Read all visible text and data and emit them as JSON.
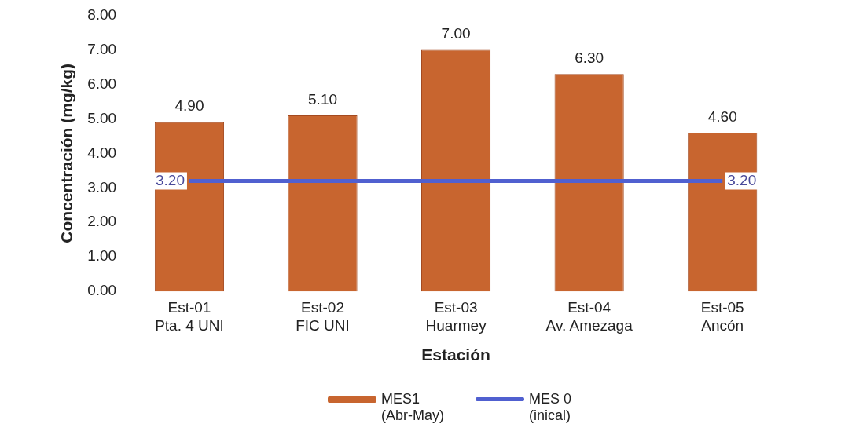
{
  "chart_data": {
    "type": "bar",
    "xlabel": "Estación",
    "ylabel": "Concentración (mg/kg)",
    "categories": [
      "Est-01\nPta. 4 UNI",
      "Est-02\nFIC UNI",
      "Est-03\nHuarmey",
      "Est-04\nAv. Amezaga",
      "Est-05\nAncón"
    ],
    "series": [
      {
        "name": "MES1\n(Abr-May)",
        "color": "#c8652f",
        "values": [
          4.9,
          5.1,
          7.0,
          6.3,
          4.6
        ],
        "value_labels": [
          "4.90",
          "5.10",
          "7.00",
          "6.30",
          "4.60"
        ]
      },
      {
        "name": "MES 0\n(inical)",
        "type": "line",
        "color": "#5060d0",
        "values": [
          3.2,
          3.2,
          3.2,
          3.2,
          3.2
        ],
        "value_labels": [
          "3.20",
          null,
          null,
          null,
          "3.20"
        ]
      }
    ],
    "ylim": [
      0,
      8
    ],
    "yticks": [
      {
        "value": 0,
        "label": "0.00"
      },
      {
        "value": 1,
        "label": "1.00"
      },
      {
        "value": 2,
        "label": "2.00"
      },
      {
        "value": 3,
        "label": "3.00"
      },
      {
        "value": 4,
        "label": "4.00"
      },
      {
        "value": 5,
        "label": "5.00"
      },
      {
        "value": 6,
        "label": "6.00"
      },
      {
        "value": 7,
        "label": "7.00"
      },
      {
        "value": 8,
        "label": "8.00"
      }
    ],
    "grid": false,
    "legend": "bottom",
    "marker": "none",
    "line_style": "solid"
  }
}
